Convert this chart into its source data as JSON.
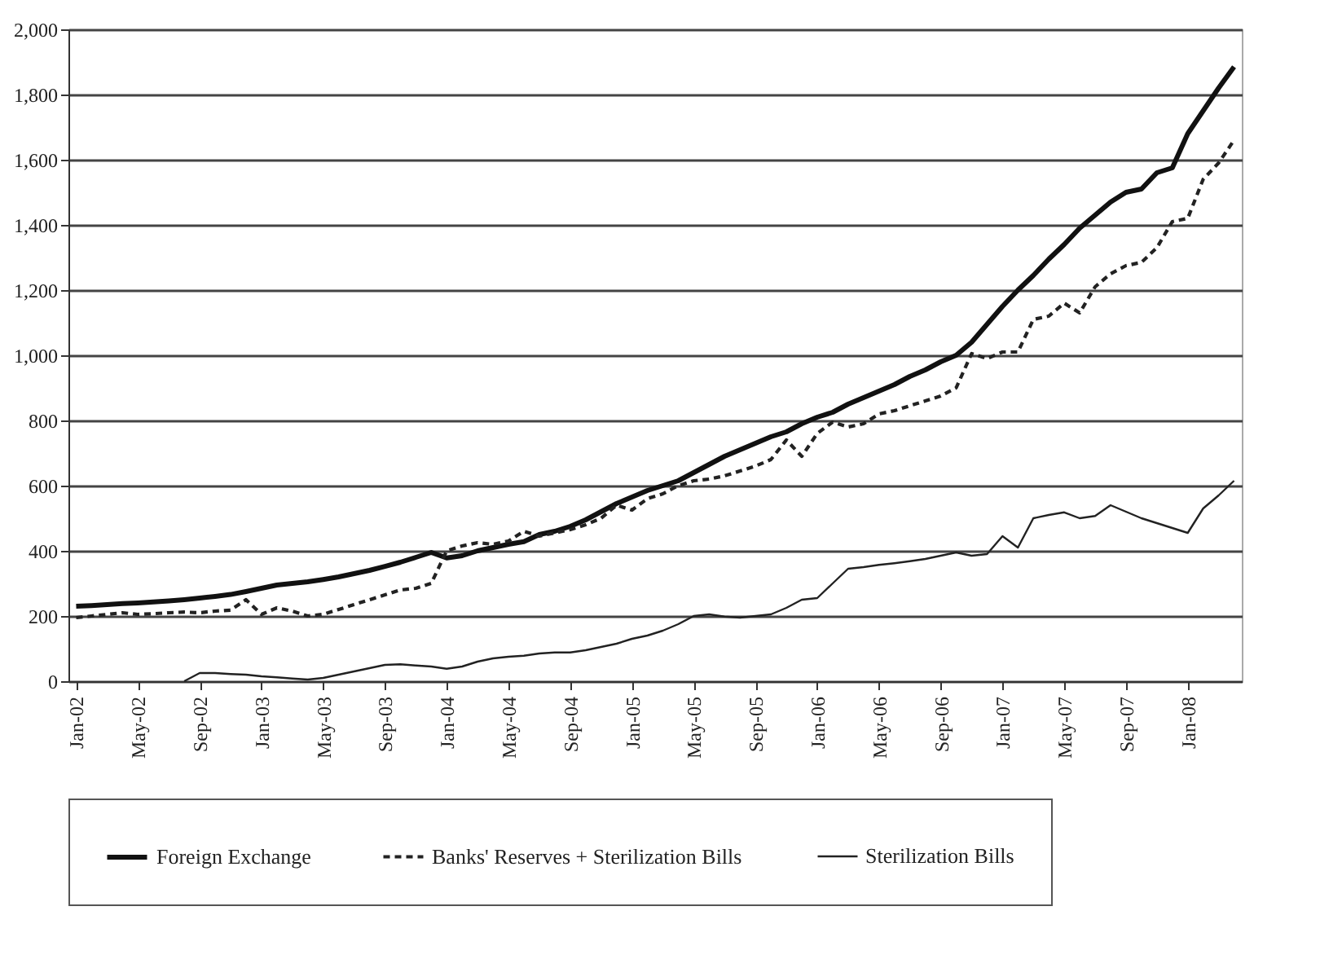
{
  "chart_data": {
    "type": "line",
    "categories": [
      "Jan-02",
      null,
      null,
      null,
      "May-02",
      null,
      null,
      null,
      "Sep-02",
      null,
      null,
      null,
      "Jan-03",
      null,
      null,
      null,
      "May-03",
      null,
      null,
      null,
      "Sep-03",
      null,
      null,
      null,
      "Jan-04",
      null,
      null,
      null,
      "May-04",
      null,
      null,
      null,
      "Sep-04",
      null,
      null,
      null,
      "Jan-05",
      null,
      null,
      null,
      "May-05",
      null,
      null,
      null,
      "Sep-05",
      null,
      null,
      null,
      "Jan-06",
      null,
      null,
      null,
      "May-06",
      null,
      null,
      null,
      "Sep-06",
      null,
      null,
      null,
      "Jan-07",
      null,
      null,
      null,
      "May-07",
      null,
      null,
      null,
      "Sep-07",
      null,
      null,
      null,
      "Jan-08",
      null,
      null,
      null
    ],
    "series": [
      {
        "name": "Foreign Exchange",
        "color": "#111111",
        "line_style": "solid",
        "values": [
          230,
          232,
          235,
          238,
          240,
          243,
          246,
          250,
          255,
          260,
          266,
          275,
          285,
          295,
          300,
          305,
          312,
          320,
          330,
          340,
          352,
          365,
          380,
          395,
          378,
          385,
          400,
          410,
          420,
          428,
          450,
          460,
          475,
          495,
          520,
          545,
          565,
          585,
          600,
          615,
          640,
          665,
          690,
          710,
          730,
          750,
          765,
          790,
          810,
          825,
          850,
          870,
          890,
          910,
          935,
          955,
          980,
          1000,
          1040,
          1095,
          1150,
          1200,
          1245,
          1295,
          1340,
          1390,
          1430,
          1470,
          1500,
          1510,
          1560,
          1575,
          1680,
          1750,
          1820,
          1885
        ]
      },
      {
        "name": "Banks' Reserves +  Sterilization Bills",
        "color": "#222222",
        "line_style": "dashed",
        "values": [
          195,
          200,
          205,
          210,
          205,
          207,
          210,
          212,
          210,
          215,
          218,
          250,
          205,
          225,
          215,
          200,
          205,
          220,
          235,
          250,
          265,
          280,
          285,
          300,
          400,
          415,
          425,
          420,
          430,
          460,
          445,
          455,
          465,
          480,
          500,
          540,
          525,
          560,
          575,
          600,
          615,
          620,
          630,
          645,
          660,
          680,
          740,
          690,
          760,
          795,
          780,
          790,
          820,
          830,
          845,
          860,
          875,
          900,
          1005,
          990,
          1010,
          1010,
          1110,
          1120,
          1160,
          1130,
          1210,
          1250,
          1275,
          1285,
          1330,
          1410,
          1420,
          1540,
          1590,
          1660
        ]
      },
      {
        "name": "Sterilization Bills",
        "color": "#222222",
        "line_style": "solid",
        "values": [
          null,
          null,
          null,
          null,
          null,
          null,
          null,
          0,
          25,
          25,
          22,
          20,
          15,
          12,
          8,
          5,
          10,
          20,
          30,
          40,
          50,
          52,
          48,
          45,
          38,
          45,
          60,
          70,
          75,
          78,
          85,
          88,
          88,
          95,
          105,
          115,
          130,
          140,
          155,
          175,
          200,
          205,
          198,
          195,
          200,
          205,
          225,
          250,
          255,
          300,
          345,
          350,
          357,
          362,
          368,
          375,
          385,
          395,
          385,
          390,
          445,
          410,
          500,
          510,
          518,
          500,
          507,
          540,
          520,
          500,
          485,
          470,
          455,
          530,
          570,
          615
        ]
      }
    ],
    "ylim": [
      0,
      2000
    ],
    "yticks": [
      0,
      200,
      400,
      600,
      800,
      {
        "value": 1000,
        "label": "1,000"
      },
      {
        "value": 1200,
        "label": "1,200"
      },
      {
        "value": 1400,
        "label": "1,400"
      },
      {
        "value": 1600,
        "label": "1,600"
      },
      {
        "value": 1800,
        "label": "1,800"
      },
      {
        "value": 2000,
        "label": "2,000"
      }
    ],
    "grid": "y",
    "legend": "bottom"
  }
}
